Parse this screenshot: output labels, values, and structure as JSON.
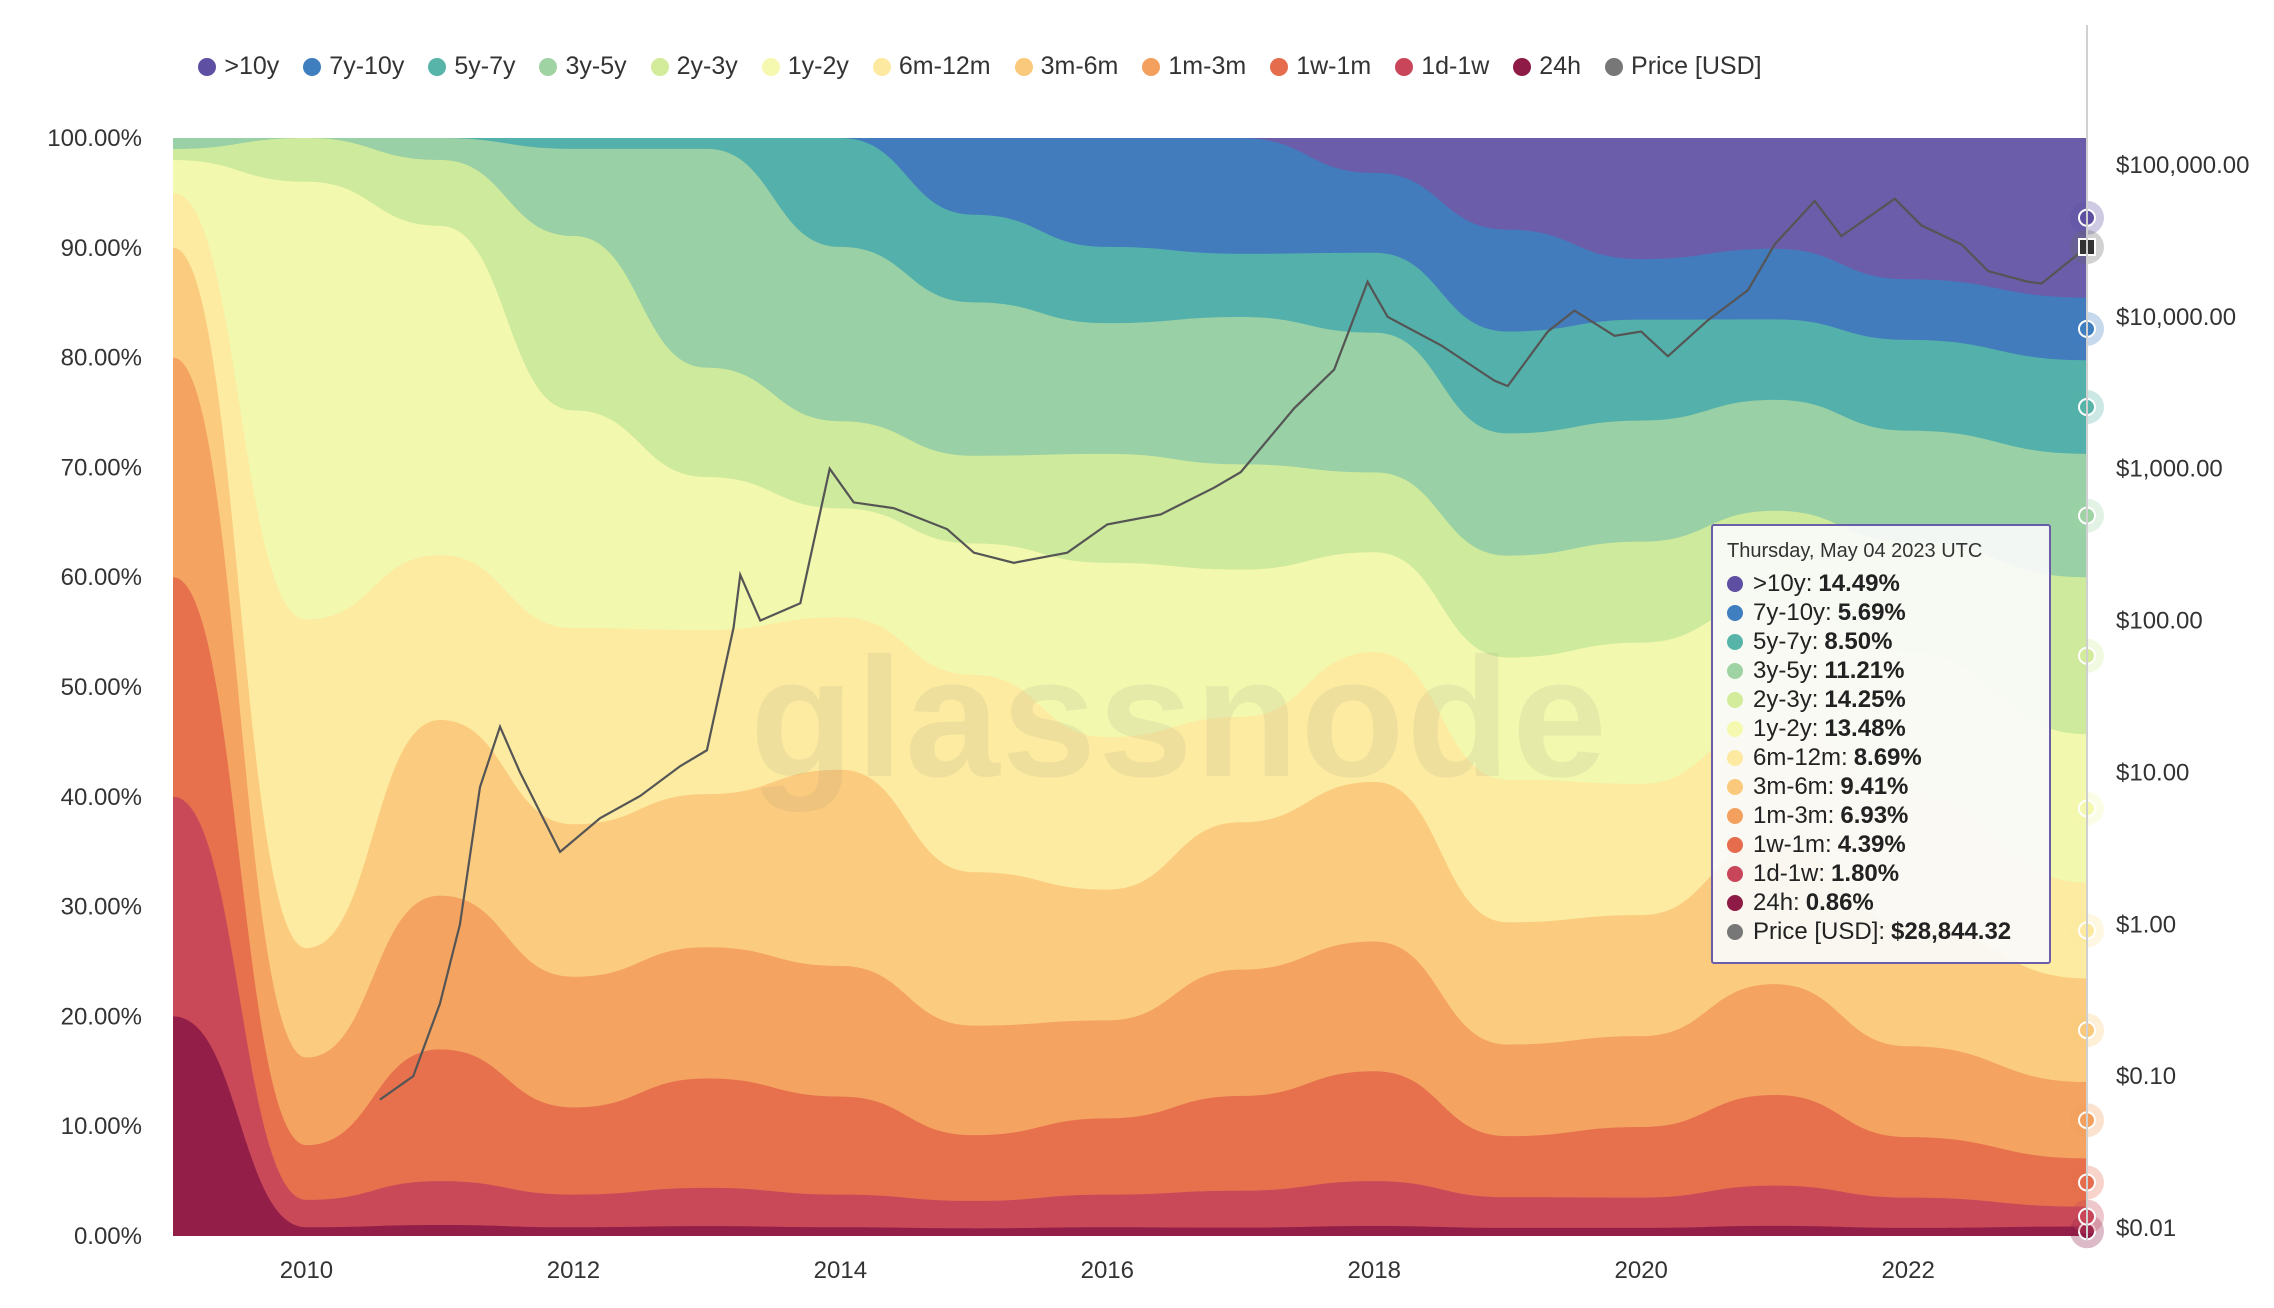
{
  "watermark": "glassnode",
  "legend": [
    {
      "label": ">10y",
      "color": "#5e4fa2"
    },
    {
      "label": "7y-10y",
      "color": "#3f7fbf"
    },
    {
      "label": "5y-7y",
      "color": "#56b4a9"
    },
    {
      "label": "3y-5y",
      "color": "#9fd3a4"
    },
    {
      "label": "2y-3y",
      "color": "#d2ec9b"
    },
    {
      "label": "1y-2y",
      "color": "#f5f9b0"
    },
    {
      "label": "6m-12m",
      "color": "#fde9a0"
    },
    {
      "label": "3m-6m",
      "color": "#fbc97c"
    },
    {
      "label": "1m-3m",
      "color": "#f3a05e"
    },
    {
      "label": "1w-1m",
      "color": "#e56c4c"
    },
    {
      "label": "1d-1w",
      "color": "#c8455a"
    },
    {
      "label": "24h",
      "color": "#8e1b46"
    },
    {
      "label": "Price [USD]",
      "color": "#777777"
    }
  ],
  "tooltip": {
    "date": "Thursday, May 04 2023 UTC",
    "rows": [
      {
        "label": ">10y:",
        "value": "14.49%",
        "color": "#5e4fa2"
      },
      {
        "label": "7y-10y:",
        "value": "5.69%",
        "color": "#3f7fbf"
      },
      {
        "label": "5y-7y:",
        "value": "8.50%",
        "color": "#56b4a9"
      },
      {
        "label": "3y-5y:",
        "value": "11.21%",
        "color": "#9fd3a4"
      },
      {
        "label": "2y-3y:",
        "value": "14.25%",
        "color": "#d2ec9b"
      },
      {
        "label": "1y-2y:",
        "value": "13.48%",
        "color": "#f5f9b0"
      },
      {
        "label": "6m-12m:",
        "value": "8.69%",
        "color": "#fde9a0"
      },
      {
        "label": "3m-6m:",
        "value": "9.41%",
        "color": "#fbc97c"
      },
      {
        "label": "1m-3m:",
        "value": "6.93%",
        "color": "#f3a05e"
      },
      {
        "label": "1w-1m:",
        "value": "4.39%",
        "color": "#e56c4c"
      },
      {
        "label": "1d-1w:",
        "value": "1.80%",
        "color": "#c8455a"
      },
      {
        "label": "24h:",
        "value": "0.86%",
        "color": "#8e1b46"
      },
      {
        "label": "Price [USD]:",
        "value": "$28,844.32",
        "color": "#777777"
      }
    ]
  },
  "chart_data": {
    "type": "area",
    "stacked": true,
    "x": [
      2009,
      2010,
      2011,
      2012,
      2013,
      2014,
      2015,
      2016,
      2017,
      2018,
      2019,
      2020,
      2021,
      2022,
      2023.34
    ],
    "xlim": [
      2009.0,
      2023.34
    ],
    "xticks": [
      2010,
      2012,
      2014,
      2016,
      2018,
      2020,
      2022
    ],
    "ylim": [
      0,
      100
    ],
    "yticks": [
      "0.00%",
      "10.00%",
      "20.00%",
      "30.00%",
      "40.00%",
      "50.00%",
      "60.00%",
      "70.00%",
      "80.00%",
      "90.00%",
      "100.00%"
    ],
    "y2_scale": "log",
    "y2lim": [
      0.01,
      100000
    ],
    "y2ticks": [
      "$0.01",
      "$0.10",
      "$1.00",
      "$10.00",
      "$100.00",
      "$1,000.00",
      "$10,000.00",
      "$100,000.00"
    ],
    "series": [
      {
        "name": "24h",
        "color": "#8e1b46",
        "values": [
          20,
          0.8,
          1.0,
          0.8,
          0.9,
          0.8,
          0.7,
          0.8,
          0.8,
          1.0,
          0.8,
          0.8,
          1.0,
          0.8,
          0.86
        ]
      },
      {
        "name": "1d-1w",
        "color": "#c8455a",
        "values": [
          20,
          2.5,
          4.0,
          3.0,
          3.5,
          3.0,
          2.5,
          3.0,
          3.5,
          4.5,
          3.0,
          3.0,
          4.0,
          3.0,
          1.8
        ]
      },
      {
        "name": "1w-1m",
        "color": "#e56c4c",
        "values": [
          20,
          5,
          12,
          8,
          10,
          9,
          6,
          7,
          9,
          11,
          6,
          7,
          9,
          6,
          4.39
        ]
      },
      {
        "name": "1m-3m",
        "color": "#f3a05e",
        "values": [
          20,
          8,
          14,
          12,
          12,
          12,
          10,
          9,
          12,
          13,
          9,
          9,
          11,
          9,
          6.93
        ]
      },
      {
        "name": "3m-6m",
        "color": "#fbc97c",
        "values": [
          10,
          10,
          16,
          14,
          14,
          18,
          14,
          12,
          14,
          16,
          12,
          12,
          14,
          12,
          9.41
        ]
      },
      {
        "name": "6m-12m",
        "color": "#fde9a0",
        "values": [
          5,
          30,
          15,
          18,
          15,
          14,
          18,
          14,
          10,
          13,
          14,
          13,
          12,
          13,
          8.69
        ]
      },
      {
        "name": "1y-2y",
        "color": "#f5f9b0",
        "values": [
          3,
          40,
          30,
          20,
          14,
          10,
          12,
          16,
          14,
          10,
          12,
          14,
          12,
          14,
          13.48
        ]
      },
      {
        "name": "2y-3y",
        "color": "#d2ec9b",
        "values": [
          1,
          4,
          6,
          16,
          10,
          8,
          8,
          10,
          10,
          8,
          10,
          10,
          9,
          11,
          14.25
        ]
      },
      {
        "name": "3y-5y",
        "color": "#9fd3a4",
        "values": [
          1,
          0,
          2,
          8,
          20,
          16,
          14,
          12,
          14,
          14,
          12,
          12,
          11,
          11,
          11.21
        ]
      },
      {
        "name": "5y-7y",
        "color": "#56b4a9",
        "values": [
          0,
          0,
          0,
          1,
          1,
          10,
          8,
          7,
          6,
          8,
          10,
          10,
          8,
          9,
          8.5
        ]
      },
      {
        "name": "7y-10y",
        "color": "#3f7fbf",
        "values": [
          0,
          0,
          0,
          0,
          0,
          0,
          7,
          10,
          11,
          8,
          10,
          6,
          7,
          6,
          5.69
        ]
      },
      {
        "name": ">10y",
        "color": "#5e4fa2",
        "values": [
          0,
          0,
          0,
          0,
          0,
          0,
          0,
          0,
          0,
          3.5,
          9,
          12,
          11,
          14,
          14.49
        ]
      }
    ],
    "price_series": {
      "name": "Price [USD]",
      "color": "#555555",
      "x": [
        2010.55,
        2010.8,
        2011.0,
        2011.15,
        2011.3,
        2011.45,
        2011.6,
        2011.9,
        2012.2,
        2012.5,
        2012.8,
        2013.0,
        2013.2,
        2013.25,
        2013.4,
        2013.7,
        2013.92,
        2014.1,
        2014.4,
        2014.8,
        2015.0,
        2015.3,
        2015.7,
        2016.0,
        2016.4,
        2016.8,
        2017.0,
        2017.4,
        2017.7,
        2017.95,
        2018.1,
        2018.5,
        2018.9,
        2019.0,
        2019.3,
        2019.5,
        2019.8,
        2020.0,
        2020.2,
        2020.5,
        2020.8,
        2021.0,
        2021.3,
        2021.5,
        2021.9,
        2022.1,
        2022.4,
        2022.6,
        2022.9,
        2023.0,
        2023.34
      ],
      "values": [
        0.07,
        0.1,
        0.3,
        1,
        8,
        20,
        10,
        3,
        5,
        7,
        11,
        14,
        90,
        200,
        100,
        130,
        1000,
        600,
        550,
        400,
        280,
        240,
        280,
        430,
        500,
        750,
        950,
        2500,
        4500,
        17000,
        10000,
        6500,
        3800,
        3500,
        8000,
        11000,
        7500,
        8000,
        5500,
        9500,
        15000,
        30000,
        58000,
        34000,
        60000,
        40000,
        30000,
        20000,
        17000,
        16600,
        28844.32
      ]
    }
  }
}
